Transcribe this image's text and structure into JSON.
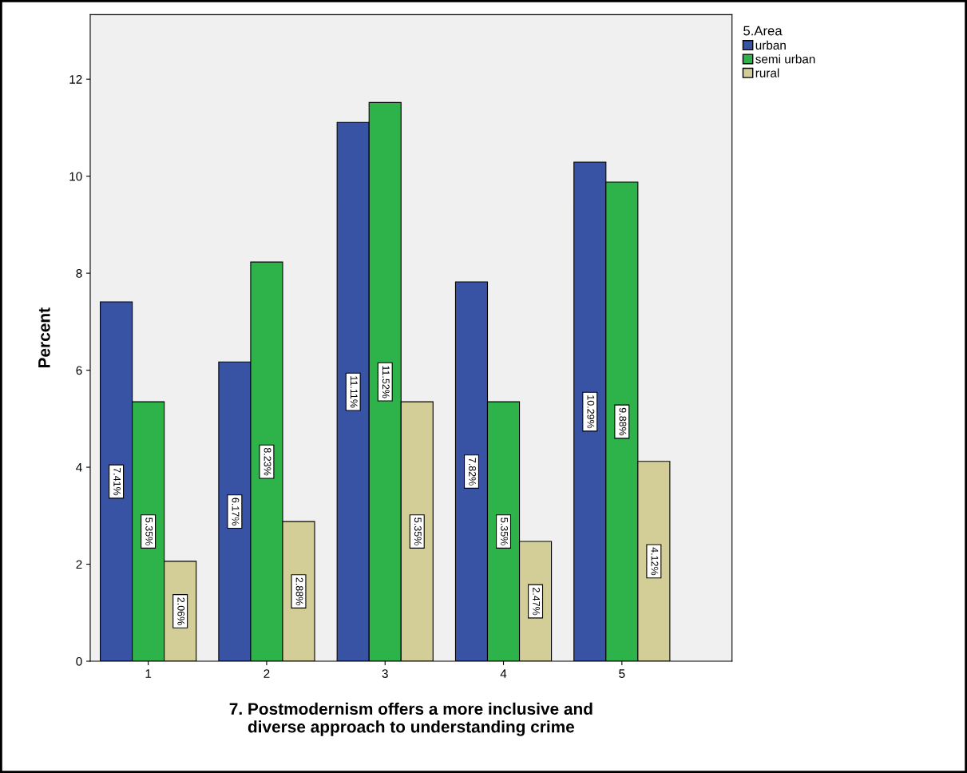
{
  "chart_data": {
    "type": "bar",
    "xlabel": "7. Postmodernism offers a more inclusive and\ndiverse approach to understanding crime",
    "ylabel": "Percent",
    "legend_title": "5.Area",
    "legend": "top right",
    "categories": [
      "1",
      "2",
      "3",
      "4",
      "5"
    ],
    "series": [
      {
        "name": "urban",
        "color": "#3953a4",
        "values": [
          7.41,
          6.17,
          11.11,
          7.82,
          10.29
        ],
        "value_labels": [
          "7.41%",
          "6.17%",
          "11.11%",
          "7.82%",
          "10.29%"
        ]
      },
      {
        "name": "semi urban",
        "color": "#2db34a",
        "values": [
          5.35,
          8.23,
          11.52,
          5.35,
          9.88
        ],
        "value_labels": [
          "5.35%",
          "8.23%",
          "11.52%",
          "5.35%",
          "9.88%"
        ]
      },
      {
        "name": "rural",
        "color": "#d3ce97",
        "values": [
          2.06,
          2.88,
          5.35,
          2.47,
          4.12
        ],
        "value_labels": [
          "2.06%",
          "2.88%",
          "5.35%",
          "2.47%",
          "4.12%"
        ]
      }
    ],
    "ylim": [
      0,
      13.33
    ],
    "yticks": [
      0,
      2,
      4,
      6,
      8,
      10,
      12
    ],
    "grid": false
  }
}
